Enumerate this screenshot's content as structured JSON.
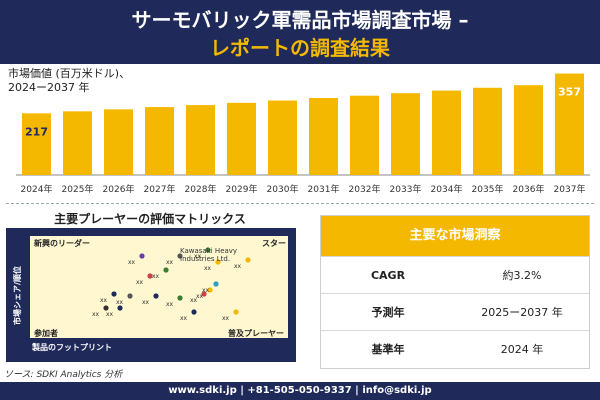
{
  "header": {
    "title_line1": "サーモバリック軍需品市場調査市場 –",
    "title_line2": "レポートの調査結果"
  },
  "chart_label": {
    "line1": "市場価値 (百万米ドル)、",
    "line2": "2024ー2037 年"
  },
  "chart_data": {
    "type": "bar",
    "categories": [
      "2024年",
      "2025年",
      "2026年",
      "2027年",
      "2028年",
      "2029年",
      "2030年",
      "2031年",
      "2032年",
      "2033年",
      "2034年",
      "2035年",
      "2036年",
      "2037年"
    ],
    "values": [
      217,
      224,
      231,
      239,
      246,
      254,
      262,
      271,
      279,
      288,
      297,
      307,
      316,
      357
    ],
    "data_labels": [
      {
        "index": 0,
        "text": "217"
      },
      {
        "index": 13,
        "text": "357"
      }
    ],
    "ylim": [
      0,
      380
    ],
    "color": "#f5b800",
    "grid": false
  },
  "matrix": {
    "title": "主要プレーヤーの評価マトリックス",
    "corner_top_left": "新興のリーダー",
    "corner_top_right": "スター",
    "corner_bottom_left": "参加者",
    "corner_bottom_right": "普及プレーヤー",
    "x_axis": "製品のフットプリント",
    "y_axis": "市場シェア/順位",
    "annotation_line1": "Kawasaki Heavy",
    "annotation_line2": "Industries Ltd.",
    "point_label": "xx"
  },
  "source": "ソース: SDKI Analytics 分析",
  "table": {
    "header": "主要な市場洞察",
    "rows": [
      {
        "key": "CAGR",
        "value": "約3.2%"
      },
      {
        "key": "予測年",
        "value": "2025ー2037 年"
      },
      {
        "key": "基準年",
        "value": "2024 年"
      }
    ]
  },
  "footer": "www.sdki.jp | +81-505-050-9337 | info@sdki.jp"
}
